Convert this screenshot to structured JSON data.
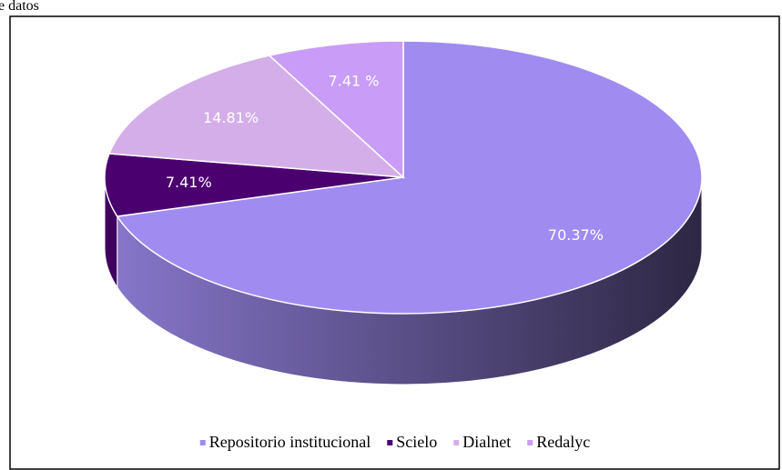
{
  "chart_data": {
    "type": "pie3d",
    "title": "e datos",
    "categories": [
      "Repositorio institucional",
      "Scielo",
      "Dialnet",
      "Redalyc"
    ],
    "values": [
      70.37,
      7.41,
      14.81,
      7.41
    ],
    "value_labels": [
      "70.37%",
      "7.41%",
      "14.81%",
      "7.41 %"
    ],
    "colors": [
      "#a08cf0",
      "#4b0070",
      "#d4aee8",
      "#c99cf8"
    ],
    "legend": "bottom"
  }
}
